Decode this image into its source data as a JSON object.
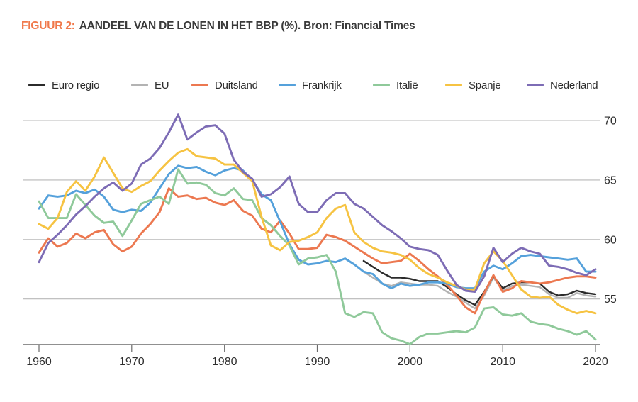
{
  "title": {
    "prefix": "FIGUUR 2:",
    "text": "AANDEEL VAN DE LONEN IN HET BBP (%). Bron: Financial Times"
  },
  "colors": {
    "title_accent": "#f0784a",
    "grid": "#b8b8b8",
    "axis": "#6b6b6b",
    "tick_text": "#2e2e2e"
  },
  "chart_data": {
    "type": "line",
    "title": "Aandeel van de lonen in het BBP (%)",
    "source": "Financial Times",
    "xlabel": "",
    "ylabel": "",
    "grid": true,
    "legend_position": "top",
    "xlim": [
      1960,
      2020
    ],
    "ylim": [
      51.1,
      71.5
    ],
    "x_ticks": [
      1960,
      1970,
      1980,
      1990,
      2000,
      2010,
      2020
    ],
    "y_ticks": [
      55,
      60,
      65,
      70
    ],
    "series": [
      {
        "name": "Euro regio",
        "color": "#2b2b2b",
        "start_year": 1995,
        "values": [
          58.2,
          57.7,
          57.2,
          56.8,
          56.8,
          56.7,
          56.5,
          56.5,
          56.5,
          56.0,
          55.4,
          54.9,
          54.5,
          55.6,
          56.9,
          55.9,
          56.3,
          56.4,
          56.4,
          56.3,
          55.6,
          55.3,
          55.4,
          55.7,
          55.5,
          55.4
        ]
      },
      {
        "name": "EU",
        "color": "#b3b3b3",
        "start_year": 1995,
        "values": [
          57.3,
          56.8,
          56.3,
          56.1,
          56.4,
          56.3,
          56.2,
          56.2,
          56.1,
          55.6,
          55.2,
          54.7,
          54.2,
          55.3,
          56.8,
          55.7,
          56.1,
          56.2,
          56.1,
          56.0,
          55.4,
          55.1,
          55.1,
          55.5,
          55.3,
          55.2
        ]
      },
      {
        "name": "Duitsland",
        "color": "#ec7850",
        "start_year": 1960,
        "values": [
          58.9,
          60.1,
          59.4,
          59.7,
          60.5,
          60.1,
          60.6,
          60.8,
          59.6,
          59.0,
          59.4,
          60.5,
          61.3,
          62.3,
          64.3,
          63.6,
          63.7,
          63.4,
          63.5,
          63.1,
          62.9,
          63.3,
          62.4,
          62.0,
          60.9,
          60.6,
          61.6,
          60.5,
          59.2,
          59.2,
          59.3,
          60.4,
          60.2,
          59.9,
          59.4,
          58.9,
          58.4,
          58.0,
          58.1,
          58.2,
          58.8,
          58.2,
          57.5,
          56.9,
          56.2,
          55.3,
          54.3,
          53.8,
          55.5,
          57.0,
          55.6,
          55.9,
          56.5,
          56.4,
          56.3,
          56.4,
          56.6,
          56.8,
          56.9,
          56.9,
          56.8
        ]
      },
      {
        "name": "Frankrijk",
        "color": "#55a1db",
        "start_year": 1960,
        "values": [
          62.6,
          63.7,
          63.6,
          63.7,
          64.1,
          63.9,
          64.2,
          63.6,
          62.5,
          62.3,
          62.5,
          62.4,
          63.1,
          64.3,
          65.5,
          66.2,
          66.0,
          66.1,
          65.7,
          65.4,
          65.8,
          66.0,
          65.8,
          65.0,
          63.8,
          63.3,
          61.5,
          59.6,
          58.3,
          57.9,
          58.0,
          58.2,
          58.1,
          58.4,
          57.9,
          57.3,
          57.1,
          56.3,
          55.9,
          56.3,
          56.1,
          56.2,
          56.4,
          56.4,
          56.3,
          56.0,
          55.9,
          55.9,
          57.3,
          57.8,
          57.5,
          58.0,
          58.6,
          58.7,
          58.6,
          58.5,
          58.4,
          58.3,
          58.4,
          57.3,
          57.3
        ]
      },
      {
        "name": "Italië",
        "color": "#8fc99a",
        "start_year": 1960,
        "values": [
          63.2,
          61.8,
          61.8,
          61.8,
          63.8,
          62.9,
          62.0,
          61.4,
          61.5,
          60.3,
          61.6,
          63.0,
          63.3,
          63.6,
          63.0,
          65.9,
          64.7,
          64.8,
          64.6,
          63.9,
          63.7,
          64.3,
          63.4,
          63.3,
          61.8,
          61.2,
          60.3,
          59.5,
          57.9,
          58.4,
          58.5,
          58.7,
          57.3,
          53.8,
          53.5,
          53.9,
          53.8,
          52.2,
          51.7,
          51.5,
          51.2,
          51.8,
          52.1,
          52.1,
          52.2,
          52.3,
          52.2,
          52.6,
          54.2,
          54.3,
          53.7,
          53.6,
          53.8,
          53.1,
          52.9,
          52.8,
          52.5,
          52.3,
          52.0,
          52.3,
          51.6
        ]
      },
      {
        "name": "Spanje",
        "color": "#f6c342",
        "start_year": 1960,
        "values": [
          61.3,
          60.9,
          61.8,
          64.0,
          64.9,
          64.1,
          65.3,
          66.9,
          65.6,
          64.3,
          64.0,
          64.5,
          64.9,
          65.8,
          66.6,
          67.3,
          67.6,
          67.0,
          66.9,
          66.8,
          66.3,
          66.3,
          65.6,
          64.9,
          61.9,
          59.5,
          59.1,
          59.8,
          59.9,
          60.2,
          60.6,
          61.8,
          62.6,
          62.9,
          60.6,
          59.8,
          59.3,
          59.0,
          58.9,
          58.7,
          58.3,
          57.6,
          57.1,
          56.8,
          56.4,
          56.1,
          55.8,
          55.8,
          58.0,
          59.0,
          58.2,
          57.0,
          55.8,
          55.2,
          55.1,
          55.2,
          54.5,
          54.1,
          53.8,
          54.0,
          53.8
        ]
      },
      {
        "name": "Nederland",
        "color": "#7d6cb5",
        "start_year": 1960,
        "values": [
          58.1,
          59.7,
          60.4,
          61.2,
          62.1,
          62.8,
          63.6,
          64.3,
          64.8,
          64.1,
          64.7,
          66.3,
          66.8,
          67.7,
          69.0,
          70.5,
          68.4,
          69.0,
          69.5,
          69.6,
          68.9,
          66.7,
          65.7,
          65.1,
          63.6,
          63.8,
          64.4,
          65.3,
          63.0,
          62.3,
          62.3,
          63.3,
          63.9,
          63.9,
          63.0,
          62.6,
          61.9,
          61.2,
          60.7,
          60.1,
          59.4,
          59.2,
          59.1,
          58.7,
          57.4,
          56.2,
          55.7,
          55.6,
          56.9,
          59.3,
          58.1,
          58.8,
          59.3,
          59.0,
          58.8,
          57.8,
          57.7,
          57.5,
          57.2,
          57.0,
          57.5
        ]
      }
    ]
  }
}
